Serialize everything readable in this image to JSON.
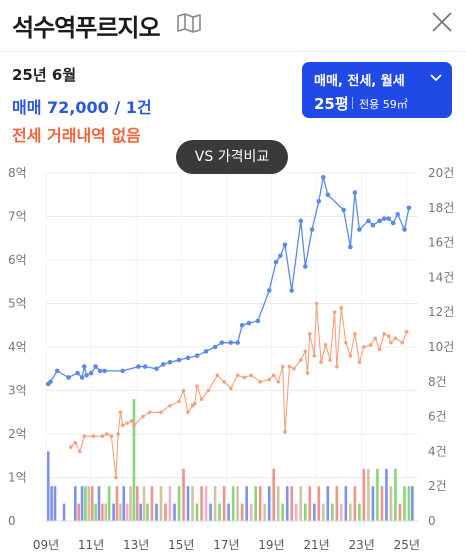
{
  "header": {
    "title": "석수역푸르지오",
    "map_icon": "map-icon",
    "close_icon": "close-icon"
  },
  "summary": {
    "year_month": "25년 6월",
    "sale": "매매 72,000 / 1건",
    "jeonse": "전세 거래내역 없음"
  },
  "filter": {
    "types": "매매, 전세, 월세",
    "size": "25평",
    "area": "전용 59㎡"
  },
  "compare_button": "VS 가격비교",
  "colors": {
    "sale": "#5b8ae8",
    "jeonse": "#f7a07e",
    "accent": "#2049e6",
    "jeonse_text": "#f4643c",
    "sale_text": "#2b57d9",
    "vol_blue": "#6f86e6",
    "vol_red": "#e98a7e",
    "vol_green": "#7ccf6e",
    "vol_pink": "#f1a7c7",
    "vol_tan": "#ccbe96"
  },
  "chart_data": {
    "type": "line",
    "x_labels": [
      "09년",
      "11년",
      "13년",
      "15년",
      "17년",
      "19년",
      "21년",
      "23년",
      "25년"
    ],
    "x_range": [
      2009.0,
      2025.5
    ],
    "y_left": {
      "unit": "억",
      "ticks": [
        "0",
        "1억",
        "2억",
        "3억",
        "4억",
        "5억",
        "6억",
        "7억",
        "8억"
      ],
      "range": [
        0,
        8
      ]
    },
    "y_right": {
      "unit": "건",
      "ticks": [
        "0",
        "2건",
        "4건",
        "6건",
        "8건",
        "10건",
        "12건",
        "14건",
        "16건",
        "18건",
        "20건"
      ],
      "range": [
        0,
        20
      ]
    },
    "grid": true,
    "series": [
      {
        "name": "매매",
        "points": [
          [
            2009.1,
            3.15
          ],
          [
            2009.2,
            3.2
          ],
          [
            2009.5,
            3.45
          ],
          [
            2010.0,
            3.3
          ],
          [
            2010.4,
            3.4
          ],
          [
            2010.6,
            3.3
          ],
          [
            2010.7,
            3.55
          ],
          [
            2010.8,
            3.35
          ],
          [
            2011.0,
            3.4
          ],
          [
            2011.2,
            3.55
          ],
          [
            2011.4,
            3.45
          ],
          [
            2011.6,
            3.45
          ],
          [
            2012.4,
            3.45
          ],
          [
            2013.1,
            3.55
          ],
          [
            2013.4,
            3.55
          ],
          [
            2013.9,
            3.5
          ],
          [
            2014.2,
            3.6
          ],
          [
            2014.5,
            3.65
          ],
          [
            2014.9,
            3.7
          ],
          [
            2015.3,
            3.75
          ],
          [
            2015.7,
            3.8
          ],
          [
            2016.1,
            3.9
          ],
          [
            2016.5,
            4.0
          ],
          [
            2016.8,
            4.1
          ],
          [
            2017.2,
            4.1
          ],
          [
            2017.5,
            4.1
          ],
          [
            2017.7,
            4.5
          ],
          [
            2018.0,
            4.55
          ],
          [
            2018.4,
            4.6
          ],
          [
            2018.9,
            5.3
          ],
          [
            2019.2,
            5.95
          ],
          [
            2019.4,
            6.1
          ],
          [
            2019.6,
            6.35
          ],
          [
            2019.9,
            5.3
          ],
          [
            2020.3,
            6.9
          ],
          [
            2020.5,
            5.85
          ],
          [
            2020.8,
            6.7
          ],
          [
            2021.1,
            7.35
          ],
          [
            2021.3,
            7.9
          ],
          [
            2021.5,
            7.5
          ],
          [
            2022.2,
            7.15
          ],
          [
            2022.5,
            6.3
          ],
          [
            2022.7,
            7.55
          ],
          [
            2022.9,
            6.7
          ],
          [
            2023.3,
            6.9
          ],
          [
            2023.5,
            6.8
          ],
          [
            2023.8,
            6.9
          ],
          [
            2024.0,
            6.95
          ],
          [
            2024.2,
            6.95
          ],
          [
            2024.4,
            6.85
          ],
          [
            2024.6,
            7.05
          ],
          [
            2024.9,
            6.7
          ],
          [
            2025.1,
            7.2
          ]
        ]
      },
      {
        "name": "전세",
        "points": [
          [
            2010.1,
            1.7
          ],
          [
            2010.3,
            1.8
          ],
          [
            2010.5,
            1.6
          ],
          [
            2010.7,
            1.95
          ],
          [
            2011.1,
            1.95
          ],
          [
            2011.5,
            1.95
          ],
          [
            2011.7,
            2.0
          ],
          [
            2011.9,
            1.95
          ],
          [
            2012.1,
            1.0
          ],
          [
            2012.2,
            2.0
          ],
          [
            2012.3,
            2.5
          ],
          [
            2012.4,
            2.2
          ],
          [
            2012.6,
            2.25
          ],
          [
            2012.8,
            2.3
          ],
          [
            2012.9,
            2.2
          ],
          [
            2013.3,
            2.4
          ],
          [
            2013.6,
            2.5
          ],
          [
            2014.1,
            2.5
          ],
          [
            2014.5,
            2.65
          ],
          [
            2014.9,
            2.75
          ],
          [
            2015.1,
            3.0
          ],
          [
            2015.3,
            2.5
          ],
          [
            2015.5,
            2.65
          ],
          [
            2015.6,
            2.7
          ],
          [
            2015.7,
            3.1
          ],
          [
            2015.9,
            2.8
          ],
          [
            2016.2,
            3.0
          ],
          [
            2016.6,
            3.35
          ],
          [
            2016.9,
            3.2
          ],
          [
            2017.2,
            3.05
          ],
          [
            2017.5,
            3.35
          ],
          [
            2017.8,
            3.3
          ],
          [
            2018.1,
            3.35
          ],
          [
            2018.5,
            3.2
          ],
          [
            2018.9,
            3.25
          ],
          [
            2019.1,
            3.35
          ],
          [
            2019.3,
            3.2
          ],
          [
            2019.5,
            3.55
          ],
          [
            2019.6,
            2.05
          ],
          [
            2019.8,
            3.55
          ],
          [
            2020.0,
            3.5
          ],
          [
            2020.3,
            3.7
          ],
          [
            2020.5,
            3.9
          ],
          [
            2020.6,
            3.4
          ],
          [
            2020.7,
            4.3
          ],
          [
            2020.9,
            3.8
          ],
          [
            2021.0,
            5.0
          ],
          [
            2021.2,
            3.65
          ],
          [
            2021.4,
            4.05
          ],
          [
            2021.6,
            3.7
          ],
          [
            2021.8,
            4.8
          ],
          [
            2021.9,
            3.55
          ],
          [
            2022.1,
            4.9
          ],
          [
            2022.3,
            4.1
          ],
          [
            2022.5,
            3.8
          ],
          [
            2022.7,
            4.3
          ],
          [
            2022.9,
            3.65
          ],
          [
            2023.1,
            4.0
          ],
          [
            2023.4,
            4.05
          ],
          [
            2023.6,
            4.2
          ],
          [
            2023.8,
            3.95
          ],
          [
            2024.0,
            4.3
          ],
          [
            2024.2,
            4.25
          ],
          [
            2024.3,
            4.1
          ],
          [
            2024.5,
            4.2
          ],
          [
            2024.8,
            4.1
          ],
          [
            2025.0,
            4.35
          ]
        ]
      }
    ],
    "volume_bars_note": "월별 거래량 (우측 축)",
    "volume_bars": [
      {
        "x": 2009.1,
        "v": 4,
        "c": "vol_blue"
      },
      {
        "x": 2009.25,
        "v": 2,
        "c": "vol_blue"
      },
      {
        "x": 2009.4,
        "v": 2,
        "c": "vol_blue"
      },
      {
        "x": 2009.8,
        "v": 1,
        "c": "vol_blue"
      },
      {
        "x": 2010.3,
        "v": 2,
        "c": "vol_blue"
      },
      {
        "x": 2010.45,
        "v": 1,
        "c": "vol_red"
      },
      {
        "x": 2010.6,
        "v": 2,
        "c": "vol_blue"
      },
      {
        "x": 2010.75,
        "v": 2,
        "c": "vol_green"
      },
      {
        "x": 2010.9,
        "v": 2,
        "c": "vol_tan"
      },
      {
        "x": 2011.05,
        "v": 2,
        "c": "vol_red"
      },
      {
        "x": 2011.2,
        "v": 1,
        "c": "vol_green"
      },
      {
        "x": 2011.35,
        "v": 2,
        "c": "vol_blue"
      },
      {
        "x": 2011.5,
        "v": 1,
        "c": "vol_red"
      },
      {
        "x": 2011.65,
        "v": 1,
        "c": "vol_tan"
      },
      {
        "x": 2011.8,
        "v": 2,
        "c": "vol_green"
      },
      {
        "x": 2012.0,
        "v": 1,
        "c": "vol_blue"
      },
      {
        "x": 2012.15,
        "v": 2,
        "c": "vol_red"
      },
      {
        "x": 2012.3,
        "v": 1,
        "c": "vol_tan"
      },
      {
        "x": 2012.45,
        "v": 2,
        "c": "vol_blue"
      },
      {
        "x": 2012.6,
        "v": 1,
        "c": "vol_pink"
      },
      {
        "x": 2012.75,
        "v": 2,
        "c": "vol_tan"
      },
      {
        "x": 2012.9,
        "v": 7,
        "c": "vol_green"
      },
      {
        "x": 2013.05,
        "v": 2,
        "c": "vol_red"
      },
      {
        "x": 2013.2,
        "v": 1,
        "c": "vol_blue"
      },
      {
        "x": 2013.35,
        "v": 2,
        "c": "vol_tan"
      },
      {
        "x": 2013.5,
        "v": 1,
        "c": "vol_green"
      },
      {
        "x": 2013.7,
        "v": 2,
        "c": "vol_red"
      },
      {
        "x": 2013.9,
        "v": 1,
        "c": "vol_blue"
      },
      {
        "x": 2014.1,
        "v": 2,
        "c": "vol_tan"
      },
      {
        "x": 2014.3,
        "v": 1,
        "c": "vol_red"
      },
      {
        "x": 2014.5,
        "v": 2,
        "c": "vol_pink"
      },
      {
        "x": 2014.7,
        "v": 1,
        "c": "vol_blue"
      },
      {
        "x": 2014.9,
        "v": 2,
        "c": "vol_green"
      },
      {
        "x": 2015.1,
        "v": 3,
        "c": "vol_red"
      },
      {
        "x": 2015.3,
        "v": 2,
        "c": "vol_blue"
      },
      {
        "x": 2015.5,
        "v": 2,
        "c": "vol_tan"
      },
      {
        "x": 2015.7,
        "v": 1,
        "c": "vol_green"
      },
      {
        "x": 2015.9,
        "v": 2,
        "c": "vol_red"
      },
      {
        "x": 2016.1,
        "v": 2,
        "c": "vol_pink"
      },
      {
        "x": 2016.3,
        "v": 1,
        "c": "vol_blue"
      },
      {
        "x": 2016.5,
        "v": 2,
        "c": "vol_tan"
      },
      {
        "x": 2016.7,
        "v": 1,
        "c": "vol_green"
      },
      {
        "x": 2016.9,
        "v": 2,
        "c": "vol_red"
      },
      {
        "x": 2017.1,
        "v": 1,
        "c": "vol_blue"
      },
      {
        "x": 2017.3,
        "v": 2,
        "c": "vol_green"
      },
      {
        "x": 2017.5,
        "v": 2,
        "c": "vol_tan"
      },
      {
        "x": 2017.7,
        "v": 1,
        "c": "vol_red"
      },
      {
        "x": 2017.9,
        "v": 2,
        "c": "vol_blue"
      },
      {
        "x": 2018.1,
        "v": 1,
        "c": "vol_pink"
      },
      {
        "x": 2018.3,
        "v": 2,
        "c": "vol_green"
      },
      {
        "x": 2018.5,
        "v": 2,
        "c": "vol_red"
      },
      {
        "x": 2018.7,
        "v": 1,
        "c": "vol_tan"
      },
      {
        "x": 2018.9,
        "v": 2,
        "c": "vol_blue"
      },
      {
        "x": 2019.1,
        "v": 3,
        "c": "vol_red"
      },
      {
        "x": 2019.3,
        "v": 2,
        "c": "vol_tan"
      },
      {
        "x": 2019.5,
        "v": 1,
        "c": "vol_green"
      },
      {
        "x": 2019.7,
        "v": 2,
        "c": "vol_blue"
      },
      {
        "x": 2019.9,
        "v": 2,
        "c": "vol_red"
      },
      {
        "x": 2020.1,
        "v": 1,
        "c": "vol_pink"
      },
      {
        "x": 2020.3,
        "v": 2,
        "c": "vol_tan"
      },
      {
        "x": 2020.5,
        "v": 1,
        "c": "vol_green"
      },
      {
        "x": 2020.7,
        "v": 2,
        "c": "vol_red"
      },
      {
        "x": 2020.9,
        "v": 1,
        "c": "vol_blue"
      },
      {
        "x": 2021.1,
        "v": 2,
        "c": "vol_red"
      },
      {
        "x": 2021.3,
        "v": 1,
        "c": "vol_tan"
      },
      {
        "x": 2021.5,
        "v": 2,
        "c": "vol_blue"
      },
      {
        "x": 2021.7,
        "v": 1,
        "c": "vol_green"
      },
      {
        "x": 2021.9,
        "v": 2,
        "c": "vol_red"
      },
      {
        "x": 2022.1,
        "v": 1,
        "c": "vol_pink"
      },
      {
        "x": 2022.3,
        "v": 2,
        "c": "vol_blue"
      },
      {
        "x": 2022.5,
        "v": 1,
        "c": "vol_tan"
      },
      {
        "x": 2022.7,
        "v": 2,
        "c": "vol_red"
      },
      {
        "x": 2022.9,
        "v": 1,
        "c": "vol_green"
      },
      {
        "x": 2023.1,
        "v": 3,
        "c": "vol_red"
      },
      {
        "x": 2023.3,
        "v": 3,
        "c": "vol_tan"
      },
      {
        "x": 2023.5,
        "v": 2,
        "c": "vol_blue"
      },
      {
        "x": 2023.7,
        "v": 3,
        "c": "vol_green"
      },
      {
        "x": 2023.9,
        "v": 2,
        "c": "vol_red"
      },
      {
        "x": 2024.1,
        "v": 3,
        "c": "vol_blue"
      },
      {
        "x": 2024.3,
        "v": 2,
        "c": "vol_tan"
      },
      {
        "x": 2024.5,
        "v": 3,
        "c": "vol_green"
      },
      {
        "x": 2024.7,
        "v": 1,
        "c": "vol_red"
      },
      {
        "x": 2024.9,
        "v": 2,
        "c": "vol_green"
      },
      {
        "x": 2025.1,
        "v": 2,
        "c": "vol_green"
      },
      {
        "x": 2025.25,
        "v": 2,
        "c": "vol_blue"
      }
    ]
  }
}
